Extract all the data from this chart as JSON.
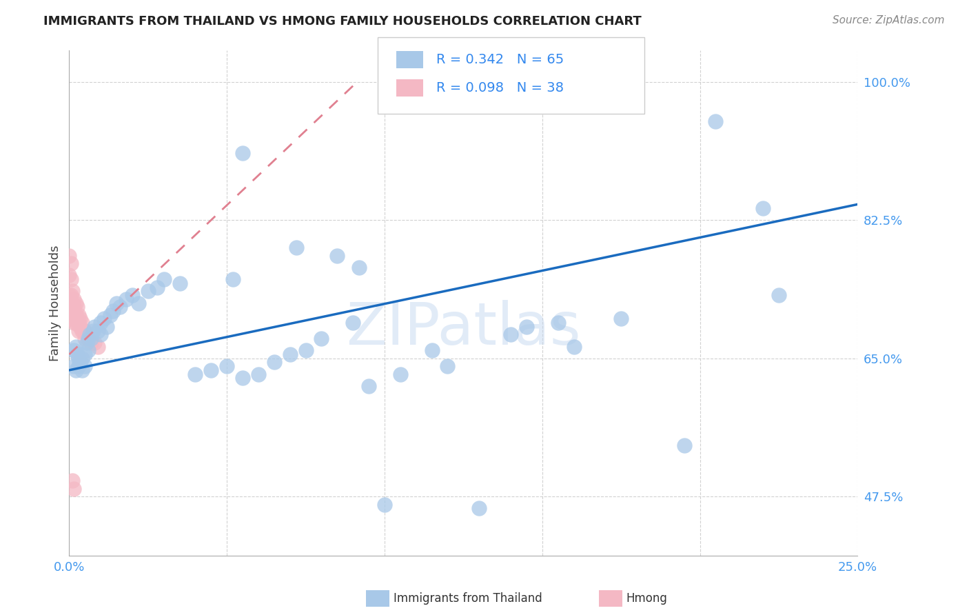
{
  "title": "IMMIGRANTS FROM THAILAND VS HMONG FAMILY HOUSEHOLDS CORRELATION CHART",
  "source": "Source: ZipAtlas.com",
  "ylabel": "Family Households",
  "watermark": "ZIPatlas",
  "legend_r1": "R = 0.342",
  "legend_n1": "N = 65",
  "legend_r2": "R = 0.098",
  "legend_n2": "N = 38",
  "xlim": [
    0.0,
    25.0
  ],
  "ylim": [
    40.0,
    104.0
  ],
  "ytick_labels": [
    "47.5%",
    "65.0%",
    "82.5%",
    "100.0%"
  ],
  "yticks": [
    47.5,
    65.0,
    82.5,
    100.0
  ],
  "blue_color": "#a8c8e8",
  "pink_color": "#f4b8c4",
  "blue_line_color": "#1a6bbf",
  "pink_line_color": "#e08090",
  "title_color": "#222222",
  "source_color": "#888888",
  "background": "#ffffff",
  "grid_color": "#cccccc",
  "blue_x": [
    0.15,
    0.15,
    0.2,
    0.2,
    0.25,
    0.3,
    0.3,
    0.35,
    0.4,
    0.4,
    0.5,
    0.5,
    0.55,
    0.6,
    0.6,
    0.65,
    0.7,
    0.75,
    0.8,
    0.9,
    1.0,
    1.0,
    1.1,
    1.2,
    1.3,
    1.4,
    1.5,
    1.6,
    1.8,
    2.0,
    2.2,
    2.5,
    2.8,
    3.0,
    3.5,
    4.0,
    4.5,
    5.0,
    5.5,
    5.5,
    6.0,
    6.5,
    7.0,
    7.5,
    8.0,
    8.5,
    9.0,
    9.5,
    10.0,
    10.5,
    11.5,
    12.0,
    13.0,
    14.0,
    15.5,
    16.0,
    17.5,
    19.5,
    20.5,
    22.0,
    22.5,
    5.2,
    7.2,
    9.2,
    14.5
  ],
  "blue_y": [
    66.0,
    64.0,
    66.5,
    63.5,
    65.5,
    65.0,
    64.0,
    64.5,
    65.0,
    63.5,
    65.5,
    64.0,
    67.0,
    67.5,
    66.0,
    68.0,
    67.5,
    68.5,
    69.0,
    68.5,
    69.5,
    68.0,
    70.0,
    69.0,
    70.5,
    71.0,
    72.0,
    71.5,
    72.5,
    73.0,
    72.0,
    73.5,
    74.0,
    75.0,
    74.5,
    63.0,
    63.5,
    64.0,
    62.5,
    91.0,
    63.0,
    64.5,
    65.5,
    66.0,
    67.5,
    78.0,
    69.5,
    61.5,
    46.5,
    63.0,
    66.0,
    64.0,
    46.0,
    68.0,
    69.5,
    66.5,
    70.0,
    54.0,
    95.0,
    84.0,
    73.0,
    75.0,
    79.0,
    76.5,
    69.0
  ],
  "pink_x": [
    0.0,
    0.0,
    0.0,
    0.0,
    0.05,
    0.05,
    0.05,
    0.05,
    0.05,
    0.1,
    0.1,
    0.1,
    0.1,
    0.15,
    0.15,
    0.15,
    0.15,
    0.2,
    0.2,
    0.2,
    0.25,
    0.25,
    0.3,
    0.3,
    0.3,
    0.35,
    0.35,
    0.4,
    0.4,
    0.45,
    0.5,
    0.5,
    0.6,
    0.7,
    0.8,
    0.9,
    0.1,
    0.15
  ],
  "pink_y": [
    78.0,
    75.5,
    73.0,
    70.0,
    77.0,
    75.0,
    73.0,
    71.0,
    70.0,
    73.5,
    72.0,
    71.0,
    70.0,
    72.5,
    71.5,
    70.5,
    69.5,
    72.0,
    70.5,
    69.5,
    71.5,
    70.0,
    70.5,
    69.5,
    68.5,
    70.0,
    69.0,
    69.5,
    68.5,
    68.5,
    68.5,
    67.5,
    67.5,
    67.0,
    67.0,
    66.5,
    49.5,
    48.5
  ],
  "blue_trend_x": [
    0.0,
    25.0
  ],
  "blue_trend_y": [
    63.5,
    84.5
  ],
  "pink_trend_x": [
    0.0,
    9.0
  ],
  "pink_trend_y": [
    65.5,
    99.5
  ]
}
